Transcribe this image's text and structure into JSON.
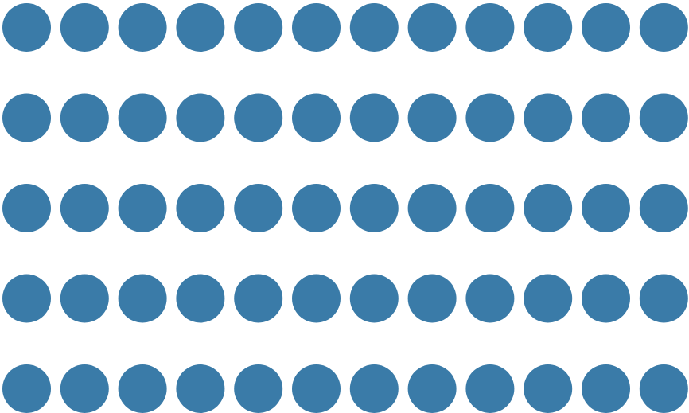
{
  "dot_grid": {
    "rows": 5,
    "columns": 12,
    "dot_color": "#3a7ba8",
    "background_color": "#ffffff"
  }
}
